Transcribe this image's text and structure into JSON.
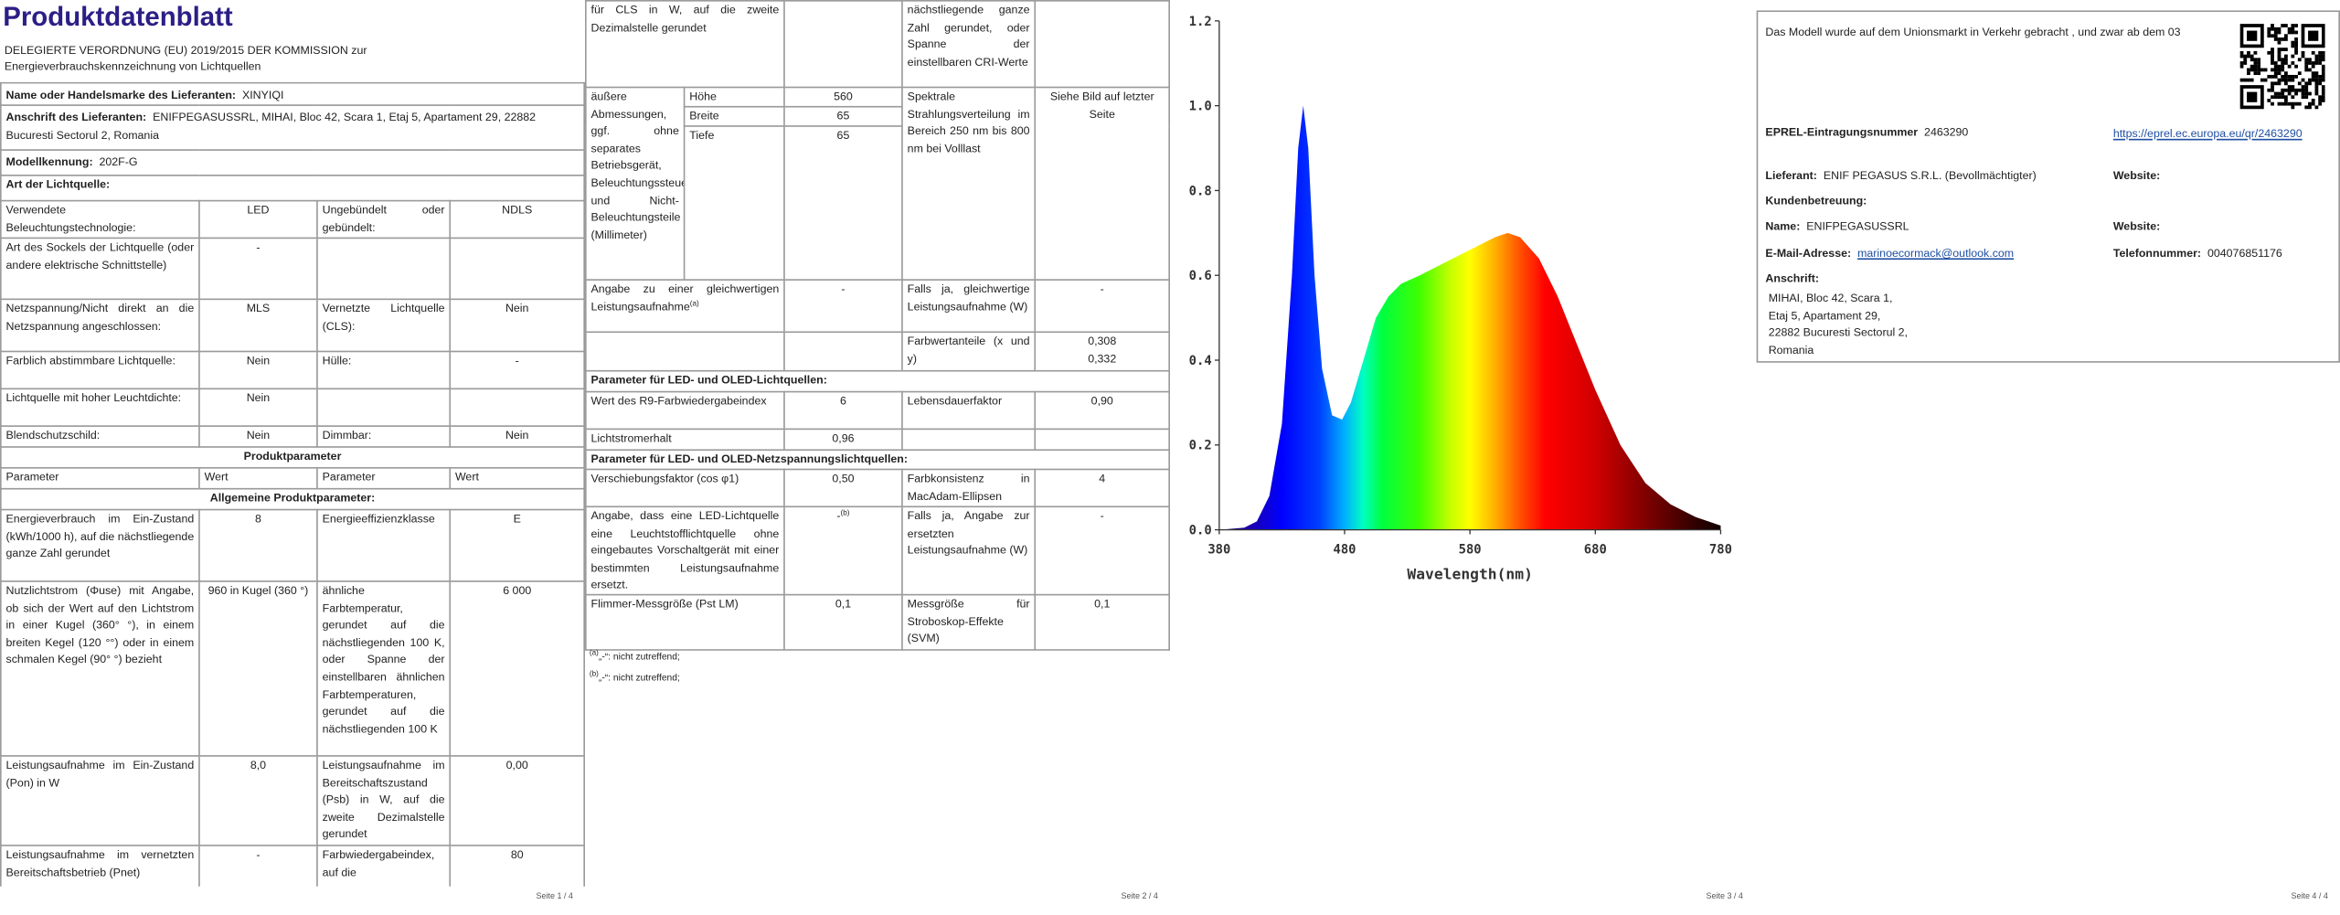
{
  "pages": [
    {
      "title": "Produktdatenblatt",
      "regulation": "DELEGIERTE VERORDNUNG (EU) 2019/2015 DER KOMMISSION zur Energieverbrauchskennzeichnung von Lichtquellen",
      "rows": [
        {
          "label": "Name oder Handelsmarke des Lieferanten:",
          "value": "XINYIQI"
        },
        {
          "label": "Anschrift des Lieferanten:",
          "value": "ENIFPEGASUSSRL, MIHAI, Bloc 42, Scara 1, Etaj 5, Apartament 29, 22882 Bucuresti Sectorul 2, Romania"
        },
        {
          "label": "Modellkennung:",
          "value": "202F-G"
        },
        {
          "section": "Art der Lichtquelle:"
        },
        {
          "cells": [
            "Verwendete Beleuchtungstechnologie:",
            "LED",
            "Ungebündelt oder gebündelt:",
            "NDLS"
          ]
        },
        {
          "cells": [
            "Art des Sockels der Lichtquelle (oder andere elektrische Schnittstelle)",
            "-",
            null,
            null
          ]
        },
        {
          "cells": [
            "Netzspannung/Nicht direkt an die Netzspannung angeschlossen:",
            "MLS",
            "Vernetzte Lichtquelle (CLS):",
            "Nein"
          ]
        },
        {
          "cells": [
            "Farblich abstimmbare Lichtquelle:",
            "Nein",
            "Hülle:",
            "-"
          ]
        },
        {
          "cells": [
            "Lichtquelle mit hoher Leuchtdichte:",
            "Nein",
            null,
            null
          ]
        },
        {
          "cells": [
            "Blendschutzschild:",
            "Nein",
            "Dimmbar:",
            "Nein"
          ]
        },
        {
          "heading": "Produktparameter"
        },
        {
          "columns": [
            "Parameter",
            "Wert",
            "Parameter",
            "Wert"
          ]
        },
        {
          "heading": "Allgemeine Produktparameter:"
        },
        {
          "cells": [
            "Energieverbrauch im Ein-Zustand (kWh/1000 h), auf die nächstliegende ganze Zahl gerundet",
            "8",
            "Energieeffizienzklasse",
            "E"
          ]
        },
        {
          "cells": [
            "Nutzlichtstrom (Φuse) mit Angabe, ob sich der Wert auf den Lichtstrom in einer Kugel (360° °), in einem breiten Kegel (120 °°) oder in einem schmalen Kegel (90° °) bezieht",
            "960 in Kugel (360 °)",
            "ähnliche Farbtemperatur, gerundet auf die nächstliegenden 100 K, oder Spanne der einstellbaren ähnlichen Farbtemperaturen, gerundet auf die nächstliegenden 100 K",
            "6 000"
          ]
        },
        {
          "cells": [
            "Leistungsaufnahme im Ein-Zustand (Pon) in W",
            "8,0",
            "Leistungsaufnahme im Bereitschaftszustand (Psb) in W, auf die zweite Dezimalstelle gerundet",
            "0,00"
          ]
        },
        {
          "cells": [
            "Leistungsaufnahme im vernetzten Bereitschaftsbetrieb (Pnet)",
            "-",
            "Farbwiedergabeindex, auf die",
            "80"
          ]
        }
      ],
      "footer": "Seite 1 / 4"
    },
    {
      "rows": [
        {
          "cells": [
            "für CLS in W, auf die zweite Dezimalstelle gerundet",
            null,
            "nächstliegende ganze Zahl gerundet, oder Spanne der einstellbaren CRI-Werte",
            null
          ]
        },
        {
          "label": "äußere Abmessungen, ggf. ohne separates Betriebsgerät, Beleuchtungssteuerungsteile und Nicht-Beleuchtungsteile (Millimeter)",
          "dimensions": [
            {
              "name": "Höhe",
              "value": "560"
            },
            {
              "name": "Breite",
              "value": "65"
            },
            {
              "name": "Tiefe",
              "value": "65"
            }
          ],
          "param": "Spektrale Strahlungsverteilung im Bereich 250 nm bis 800 nm bei Volllast",
          "param_value": "Siehe Bild auf letzter Seite"
        },
        {
          "cells": [
            {
              "text": "Angabe zu einer gleichwertigen Leistungsaufnahme",
              "sup": "(a)"
            },
            "-",
            "Falls ja, gleichwertige Leistungsaufnahme (W)",
            "-"
          ]
        },
        {
          "cells": [
            null,
            null,
            "Farbwertanteile (x und y)",
            [
              "0,308",
              "0,332"
            ]
          ]
        },
        {
          "section": "Parameter für LED- und OLED-Lichtquellen:"
        },
        {
          "cells": [
            "Wert des R9-Farbwiedergabeindex",
            "6",
            "Lebensdauerfaktor",
            "0,90"
          ]
        },
        {
          "cells": [
            "Lichtstromerhalt",
            "0,96",
            null,
            null
          ]
        },
        {
          "section": "Parameter für LED- und OLED-Netzspannungslichtquellen:"
        },
        {
          "cells": [
            "Verschiebungsfaktor (cos φ1)",
            "0,50",
            "Farbkonsistenz in MacAdam-Ellipsen",
            "4"
          ]
        },
        {
          "cells": [
            "Angabe, dass eine LED-Lichtquelle eine Leuchtstofflichtquelle ohne eingebautes Vorschaltgerät mit einer bestimmten Leistungsaufnahme ersetzt.",
            {
              "text": "-",
              "sup": "(b)"
            },
            "Falls ja, Angabe zur ersetzten Leistungsaufnahme (W)",
            "-"
          ]
        },
        {
          "cells": [
            "Flimmer-Messgröße (Pst LM)",
            "0,1",
            "Messgröße für Stroboskop-Effekte (SVM)",
            "0,1"
          ]
        }
      ],
      "footnotes": [
        {
          "mark": "(a)",
          "text": "„-“: nicht zutreffend;"
        },
        {
          "mark": "(b)",
          "text": "„-“: nicht zutreffend;"
        }
      ],
      "footer": "Seite 2 / 4"
    },
    {
      "chart": {
        "type": "area",
        "x_label": "Wavelength(nm)",
        "x": [
          380,
          400,
          410,
          420,
          430,
          438,
          443,
          447,
          451,
          456,
          462,
          470,
          478,
          485,
          495,
          505,
          515,
          525,
          540,
          560,
          580,
          600,
          610,
          620,
          635,
          650,
          665,
          680,
          700,
          720,
          740,
          760,
          780
        ],
        "values": [
          0,
          0.005,
          0.02,
          0.08,
          0.25,
          0.6,
          0.9,
          1.0,
          0.9,
          0.6,
          0.38,
          0.27,
          0.26,
          0.3,
          0.4,
          0.5,
          0.55,
          0.58,
          0.6,
          0.63,
          0.66,
          0.69,
          0.7,
          0.69,
          0.64,
          0.55,
          0.44,
          0.33,
          0.2,
          0.11,
          0.06,
          0.03,
          0.01
        ],
        "xlim": [
          380,
          780
        ],
        "ylim": [
          0,
          1.2
        ],
        "xticks": [
          380,
          480,
          580,
          680,
          780
        ],
        "yticks": [
          {
            "value": 0,
            "label": "0.0"
          },
          0.2,
          0.4,
          0.6,
          0.8,
          {
            "value": 1,
            "label": "1.0"
          },
          1.2
        ]
      },
      "footer": "Seite 3 / 4"
    },
    {
      "market_note": "Das Modell wurde auf dem Unionsmarkt in Verkehr gebracht , und zwar ab dem 03",
      "eprel": {
        "label": "EPREL-Eintragungsnummer",
        "value": "2463290",
        "link": "https://eprel.ec.europa.eu/qr/2463290"
      },
      "supplier": {
        "label": "Lieferant:",
        "value": "ENIF PEGASUS S.R.L. (Bevollmächtigter)"
      },
      "supplier_website": "Website:",
      "customer_service": "Kundenbetreuung:",
      "name": {
        "label": "Name:",
        "value": "ENIFPEGASUSSRL"
      },
      "contact_website": "Website:",
      "email": {
        "label": "E-Mail-Adresse:",
        "value": "marinoecormack@outlook.com"
      },
      "phone": {
        "label": "Telefonnummer:",
        "value": "004076851176"
      },
      "address": {
        "label": "Anschrift:",
        "lines": [
          "MIHAI, Bloc 42, Scara 1,",
          "Etaj 5, Apartament 29,",
          "22882 Bucuresti Sectorul 2,",
          "Romania"
        ]
      },
      "footer": "Seite 4 / 4"
    }
  ]
}
